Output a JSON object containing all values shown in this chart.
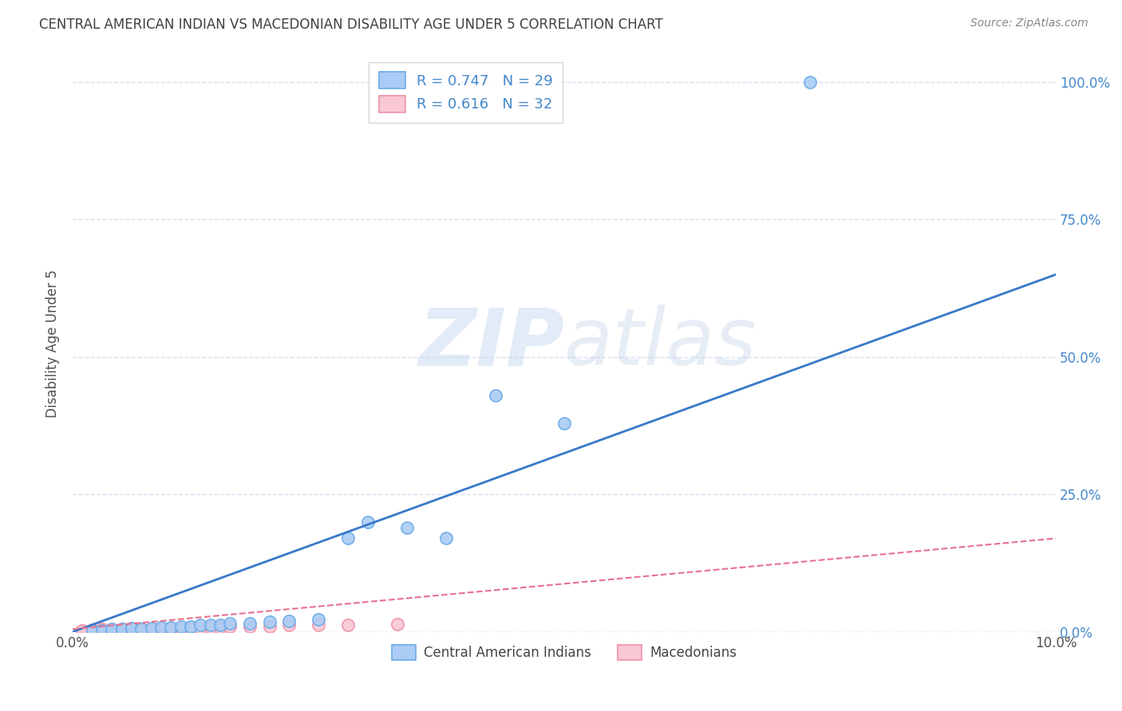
{
  "title": "CENTRAL AMERICAN INDIAN VS MACEDONIAN DISABILITY AGE UNDER 5 CORRELATION CHART",
  "source": "Source: ZipAtlas.com",
  "ylabel": "Disability Age Under 5",
  "xlim": [
    0.0,
    0.1
  ],
  "ylim": [
    0.0,
    1.05
  ],
  "xtick_labels": [
    "0.0%",
    "10.0%"
  ],
  "ytick_labels": [
    "0.0%",
    "25.0%",
    "50.0%",
    "75.0%",
    "100.0%"
  ],
  "ytick_positions": [
    0.0,
    0.25,
    0.5,
    0.75,
    1.0
  ],
  "blue_R": 0.747,
  "blue_N": 29,
  "pink_R": 0.616,
  "pink_N": 32,
  "blue_color": "#aaccf4",
  "blue_edge_color": "#6aaae8",
  "blue_line_color": "#3878c8",
  "pink_color": "#f8c8d4",
  "pink_edge_color": "#f090a8",
  "pink_line_color": "#e8708c",
  "blue_scatter_x": [
    0.002,
    0.003,
    0.004,
    0.004,
    0.005,
    0.005,
    0.006,
    0.006,
    0.007,
    0.008,
    0.009,
    0.01,
    0.011,
    0.012,
    0.013,
    0.014,
    0.015,
    0.016,
    0.018,
    0.02,
    0.022,
    0.025,
    0.028,
    0.03,
    0.034,
    0.038,
    0.043,
    0.05,
    0.075
  ],
  "blue_scatter_y": [
    0.002,
    0.003,
    0.003,
    0.005,
    0.004,
    0.006,
    0.005,
    0.007,
    0.006,
    0.007,
    0.008,
    0.008,
    0.01,
    0.01,
    0.012,
    0.013,
    0.013,
    0.015,
    0.016,
    0.018,
    0.02,
    0.022,
    0.17,
    0.2,
    0.19,
    0.17,
    0.43,
    0.38,
    1.0
  ],
  "pink_scatter_x": [
    0.001,
    0.001,
    0.002,
    0.002,
    0.003,
    0.003,
    0.003,
    0.004,
    0.004,
    0.005,
    0.005,
    0.006,
    0.006,
    0.007,
    0.007,
    0.008,
    0.008,
    0.009,
    0.009,
    0.01,
    0.011,
    0.012,
    0.013,
    0.014,
    0.015,
    0.016,
    0.018,
    0.02,
    0.022,
    0.025,
    0.028,
    0.033
  ],
  "pink_scatter_y": [
    0.002,
    0.003,
    0.002,
    0.004,
    0.002,
    0.003,
    0.005,
    0.003,
    0.004,
    0.003,
    0.005,
    0.003,
    0.005,
    0.004,
    0.006,
    0.004,
    0.006,
    0.005,
    0.007,
    0.005,
    0.006,
    0.007,
    0.007,
    0.008,
    0.008,
    0.009,
    0.01,
    0.01,
    0.012,
    0.013,
    0.012,
    0.014
  ],
  "blue_trend_x": [
    0.0,
    0.1
  ],
  "blue_trend_y": [
    0.0,
    0.65
  ],
  "pink_trend_x": [
    0.0,
    0.1
  ],
  "pink_trend_y": [
    0.005,
    0.17
  ],
  "watermark_zip": "ZIP",
  "watermark_atlas": "atlas",
  "background_color": "#ffffff",
  "grid_color": "#d8dff0",
  "title_color": "#404040",
  "axis_label_color": "#505050",
  "tick_color_right": "#4488cc",
  "source_color": "#888888"
}
